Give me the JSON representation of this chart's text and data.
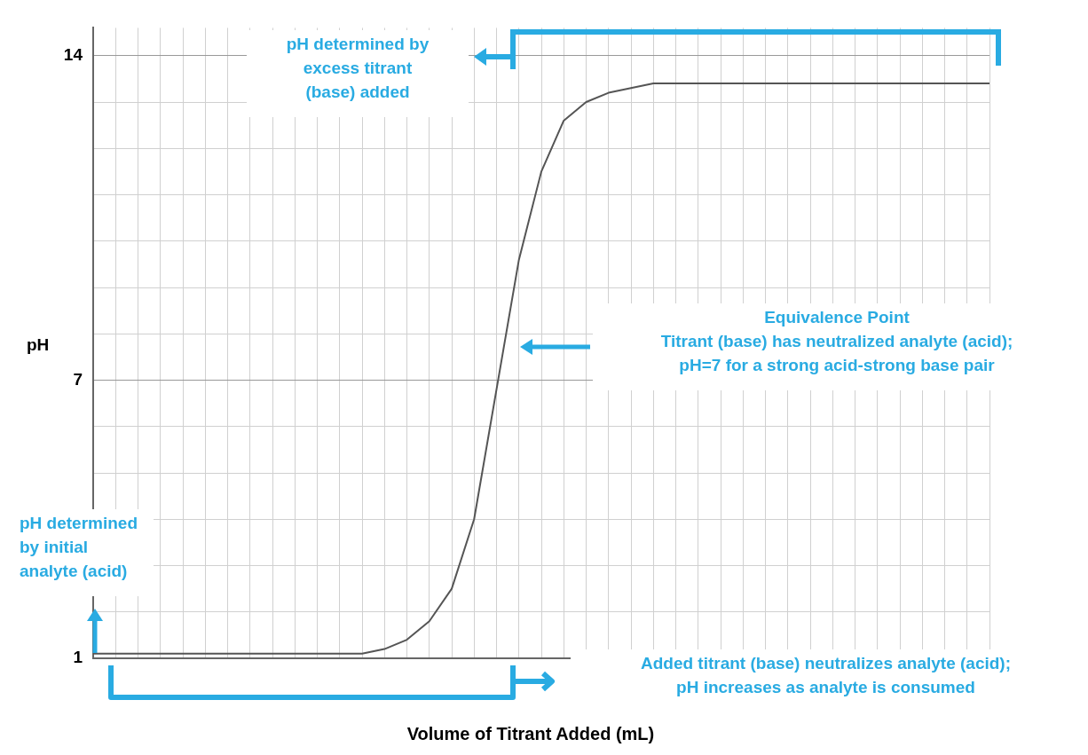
{
  "chart_data": {
    "type": "line",
    "xlabel": "Volume of Titrant Added (mL)",
    "ylabel": "pH",
    "categories": [
      null,
      null,
      null,
      null,
      null,
      null,
      null,
      null,
      null,
      null,
      null,
      null,
      null,
      null,
      null,
      null,
      null,
      null,
      null,
      null,
      null,
      null,
      null,
      null,
      null,
      null,
      null,
      null,
      null,
      null,
      null,
      null,
      null,
      null,
      null,
      null,
      null,
      null,
      null,
      null,
      null
    ],
    "values": [
      1.1,
      1.1,
      1.1,
      1.1,
      1.1,
      1.1,
      1.1,
      1.1,
      1.1,
      1.1,
      1.1,
      1.1,
      1.1,
      1.2,
      1.4,
      1.8,
      2.5,
      4.0,
      6.8,
      9.6,
      11.5,
      12.6,
      13.0,
      13.2,
      13.3,
      13.4,
      13.4,
      13.4,
      13.4,
      13.4,
      13.4,
      13.4,
      13.4,
      13.4,
      13.4,
      13.4,
      13.4,
      13.4,
      13.4,
      13.4,
      13.4
    ],
    "color": "#555555",
    "marker": "none",
    "ylim": [
      1,
      14.6
    ],
    "yticks": [
      1,
      {
        "value": 2,
        "label": null
      },
      {
        "value": 3,
        "label": null
      },
      {
        "value": 4,
        "label": null
      },
      {
        "value": 5,
        "label": null
      },
      {
        "value": 6,
        "label": null
      },
      7,
      {
        "value": 8,
        "label": null
      },
      {
        "value": 9,
        "label": null
      },
      {
        "value": 10,
        "label": null
      },
      {
        "value": 11,
        "label": null
      },
      {
        "value": 12,
        "label": null
      },
      {
        "value": 13,
        "label": null
      },
      14
    ],
    "grid": true,
    "tick_labels": "y",
    "annotations": [
      "pH determined by\nexcess titrant\n(base) added",
      "Equivalence Point\nTitrant (base) has neutralized analyte (acid);\npH=7 for a strong acid-strong base pair",
      "pH determined\nby initial\nanalyte (acid)",
      "Added titrant (base) neutralizes analyte (acid);\npH increases as analyte is consumed"
    ]
  }
}
